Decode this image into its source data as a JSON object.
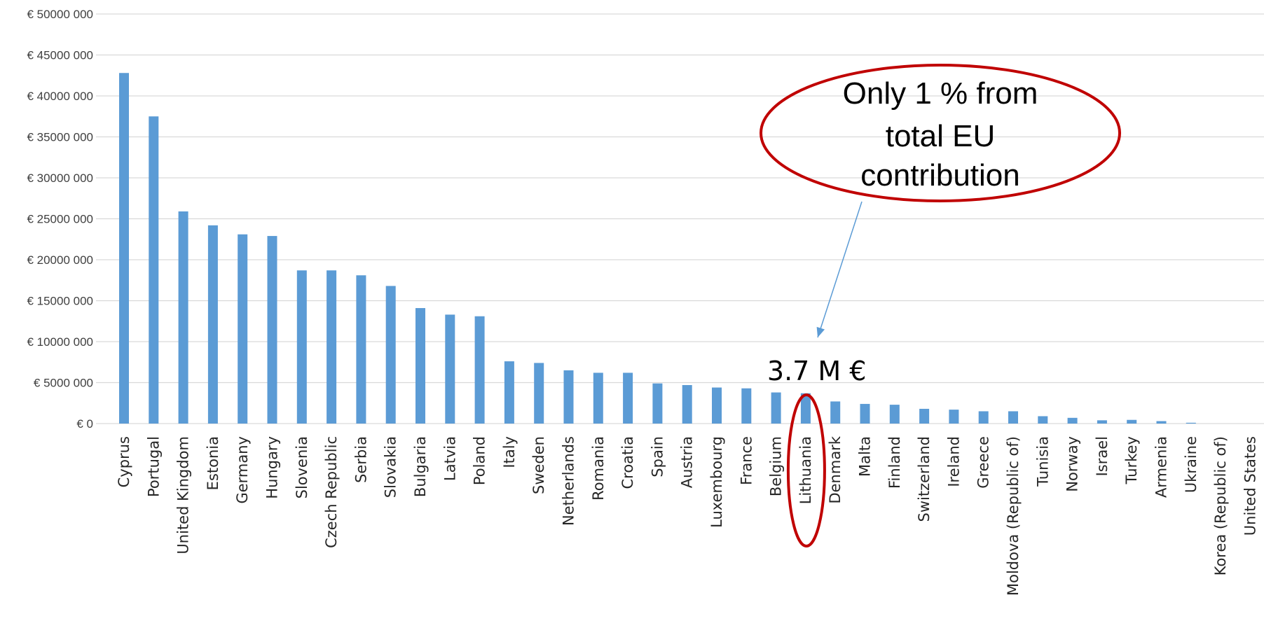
{
  "chart_data": {
    "type": "bar",
    "title": "",
    "xlabel": "",
    "ylabel": "",
    "ylim": [
      0,
      50000000
    ],
    "y_ticks": [
      {
        "value": 0,
        "label": "€ 0"
      },
      {
        "value": 5000000,
        "label": "€ 5000 000"
      },
      {
        "value": 10000000,
        "label": "€ 10000 000"
      },
      {
        "value": 15000000,
        "label": "€ 15000 000"
      },
      {
        "value": 20000000,
        "label": "€ 20000 000"
      },
      {
        "value": 25000000,
        "label": "€ 25000 000"
      },
      {
        "value": 30000000,
        "label": "€ 30000 000"
      },
      {
        "value": 35000000,
        "label": "€ 35000 000"
      },
      {
        "value": 40000000,
        "label": "€ 40000 000"
      },
      {
        "value": 45000000,
        "label": "€ 45000 000"
      },
      {
        "value": 50000000,
        "label": "€ 50000 000"
      }
    ],
    "grid": true,
    "legend": "none",
    "bar_color": "#5b9bd5",
    "grid_color": "#d9d9d9",
    "categories": [
      "Cyprus",
      "Portugal",
      "United Kingdom",
      "Estonia",
      "Germany",
      "Hungary",
      "Slovenia",
      "Czech Republic",
      "Serbia",
      "Slovakia",
      "Bulgaria",
      "Latvia",
      "Poland",
      "Italy",
      "Sweden",
      "Netherlands",
      "Romania",
      "Croatia",
      "Spain",
      "Austria",
      "Luxembourg",
      "France",
      "Belgium",
      "Lithuania",
      "Denmark",
      "Malta",
      "Finland",
      "Switzerland",
      "Ireland",
      "Greece",
      "Moldova (Republic of)",
      "Tunisia",
      "Norway",
      "Israel",
      "Turkey",
      "Armenia",
      "Ukraine",
      "Korea (Republic of)",
      "United States"
    ],
    "values": [
      42800000,
      37500000,
      25900000,
      24200000,
      23100000,
      22900000,
      18700000,
      18700000,
      18100000,
      16800000,
      14100000,
      13300000,
      13100000,
      7600000,
      7400000,
      6500000,
      6200000,
      6200000,
      4900000,
      4700000,
      4400000,
      4300000,
      3800000,
      3700000,
      2700000,
      2400000,
      2300000,
      1800000,
      1700000,
      1500000,
      1500000,
      900000,
      700000,
      400000,
      450000,
      300000,
      100000,
      0,
      0
    ],
    "annotations": {
      "highlight_category": "Lithuania",
      "value_label": "3.7 M €",
      "callout_lines": [
        "Only 1 % from",
        "total EU",
        "contribution"
      ],
      "highlight_color": "#c00000",
      "arrow_color": "#5b9bd5"
    }
  }
}
